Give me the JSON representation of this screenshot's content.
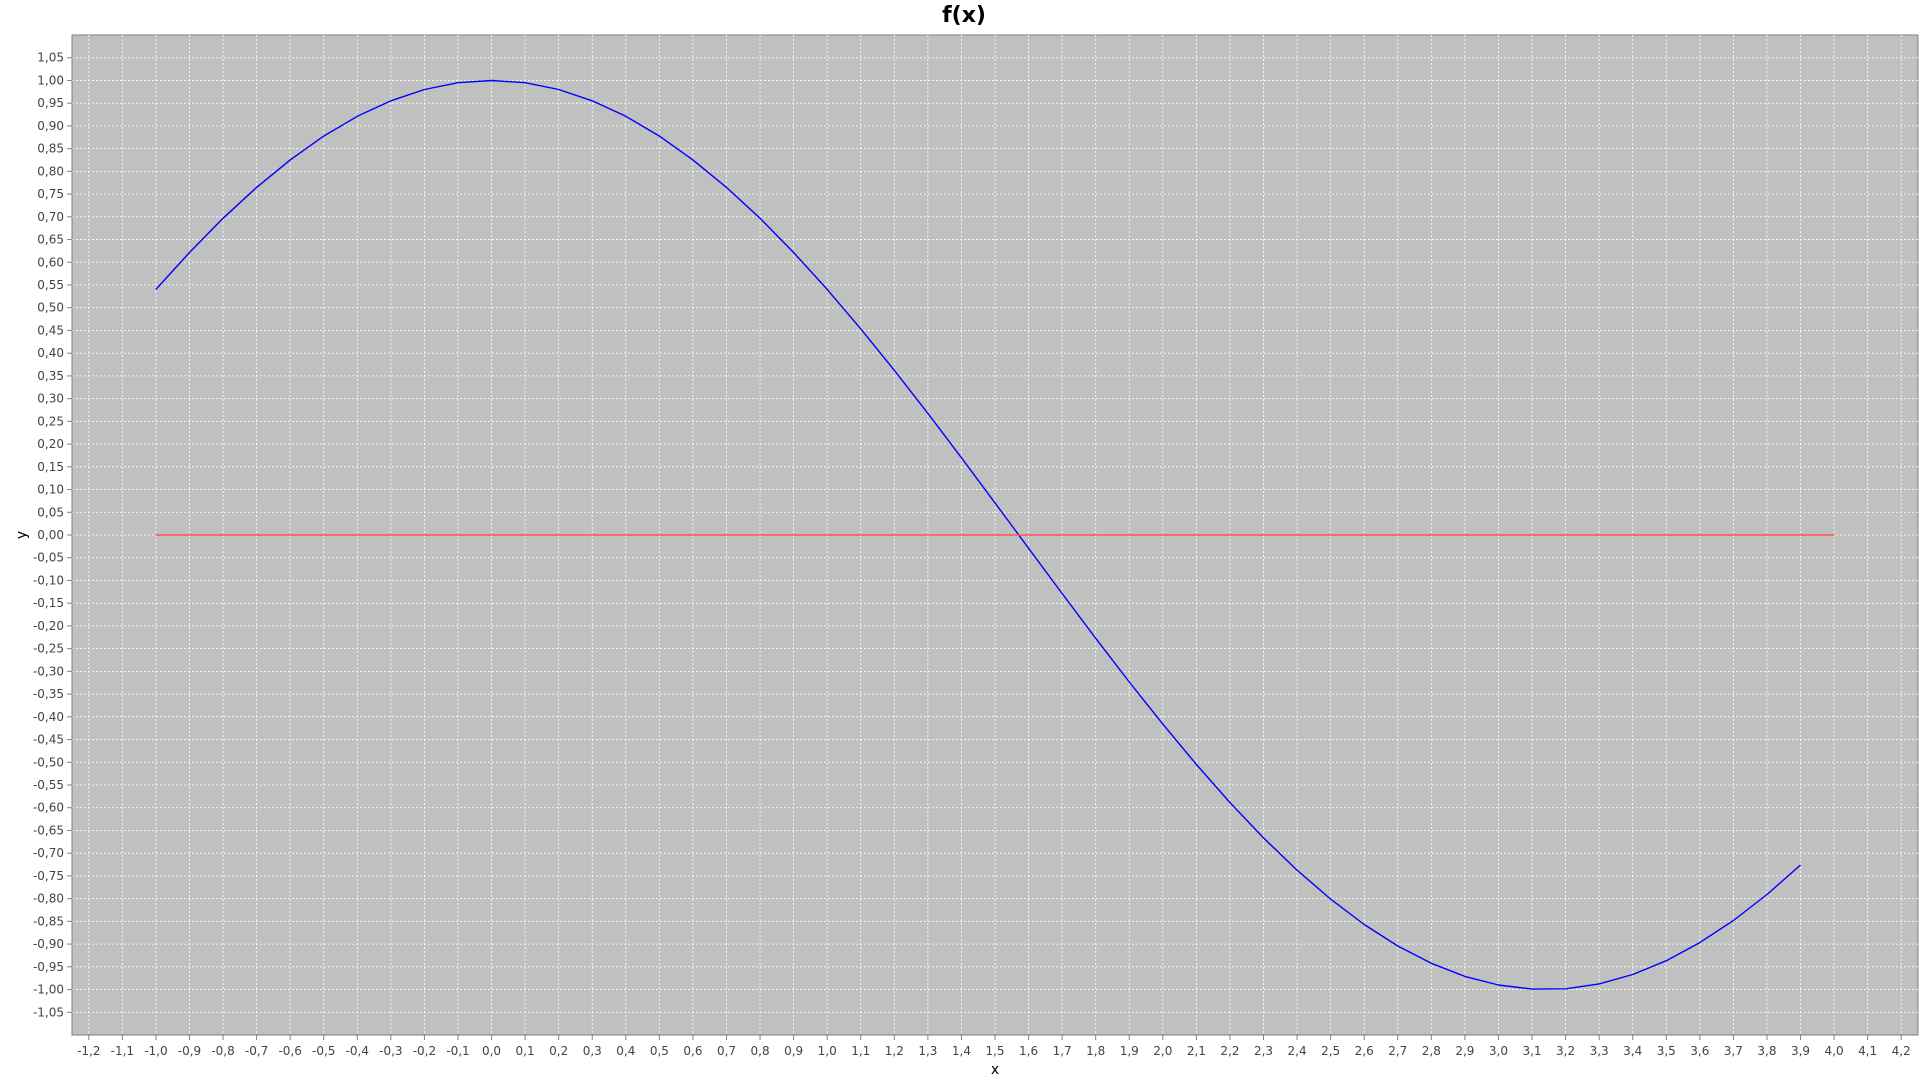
{
  "chart_data": {
    "type": "line",
    "title": "f(x)",
    "xlabel": "x",
    "ylabel": "y",
    "xlim": [
      -1.25,
      4.25
    ],
    "ylim": [
      -1.1,
      1.1
    ],
    "grid": true,
    "plot_background": "#c0c0c0",
    "x_ticks": {
      "start": -1.2,
      "end": 4.2,
      "step": 0.1,
      "decimals": 1
    },
    "y_ticks": {
      "start": -1.05,
      "end": 1.05,
      "step": 0.05,
      "decimals": 2
    },
    "decimal_separator": ",",
    "series": [
      {
        "function": "cos(x)",
        "color": "#0000ff",
        "x": [
          -1.0,
          -0.9,
          -0.8,
          -0.7,
          -0.6,
          -0.5,
          -0.4,
          -0.3,
          -0.2,
          -0.1,
          0.0,
          0.1,
          0.2,
          0.3,
          0.4,
          0.5,
          0.6,
          0.7,
          0.8,
          0.9,
          1.0,
          1.1,
          1.2,
          1.3,
          1.4,
          1.5,
          1.6,
          1.7,
          1.8,
          1.9,
          2.0,
          2.1,
          2.2,
          2.3,
          2.4,
          2.5,
          2.6,
          2.7,
          2.8,
          2.9,
          3.0,
          3.1,
          3.2,
          3.3,
          3.4,
          3.5,
          3.6,
          3.7,
          3.8,
          3.9
        ],
        "y": [
          0.5403,
          0.6216,
          0.6967,
          0.7648,
          0.8253,
          0.8776,
          0.9211,
          0.9553,
          0.9801,
          0.995,
          1.0,
          0.995,
          0.9801,
          0.9553,
          0.9211,
          0.8776,
          0.8253,
          0.7648,
          0.6967,
          0.6216,
          0.5403,
          0.4536,
          0.3624,
          0.2675,
          0.17,
          0.0707,
          -0.0292,
          -0.1288,
          -0.2272,
          -0.3233,
          -0.4161,
          -0.5048,
          -0.5885,
          -0.6663,
          -0.7374,
          -0.8011,
          -0.8569,
          -0.9041,
          -0.9422,
          -0.971,
          -0.99,
          -0.9991,
          -0.9983,
          -0.9875,
          -0.9668,
          -0.9365,
          -0.8968,
          -0.8481,
          -0.791,
          -0.7259
        ]
      },
      {
        "function": "0",
        "color": "#ff5555",
        "x": [
          -1.0,
          4.0
        ],
        "y": [
          0.0,
          0.0
        ]
      }
    ]
  }
}
